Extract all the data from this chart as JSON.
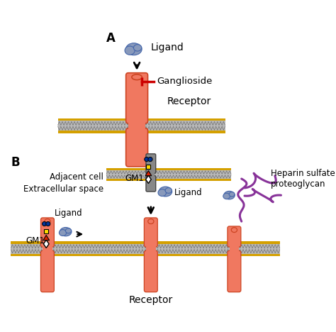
{
  "background_color": "#ffffff",
  "membrane_color": "#D4A000",
  "receptor_color": "#F07860",
  "ligand_color": "#8899BB",
  "adj_receptor_color": "#888888",
  "heparin_color": "#883399",
  "text_color": "#000000",
  "gm1_square_color": "#FFDD00",
  "gm1_circle_color": "#003399",
  "gm1_triangle_color": "#DD2200",
  "title_A": "A",
  "title_B": "B",
  "label_ligand": "Ligand",
  "label_ganglioside": "Ganglioside",
  "label_receptor_A": "Receptor",
  "label_adjacent": "Adjacent cell",
  "label_extracellular": "Extracellular space",
  "label_ligand_B_left": "Ligand",
  "label_gm1_left": "GM1",
  "label_gm1_mid": "GM1",
  "label_ligand_B_mid": "Ligand",
  "label_heparin": "Heparin sulfate\nproteoglycan",
  "label_receptor_B": "Receptor"
}
